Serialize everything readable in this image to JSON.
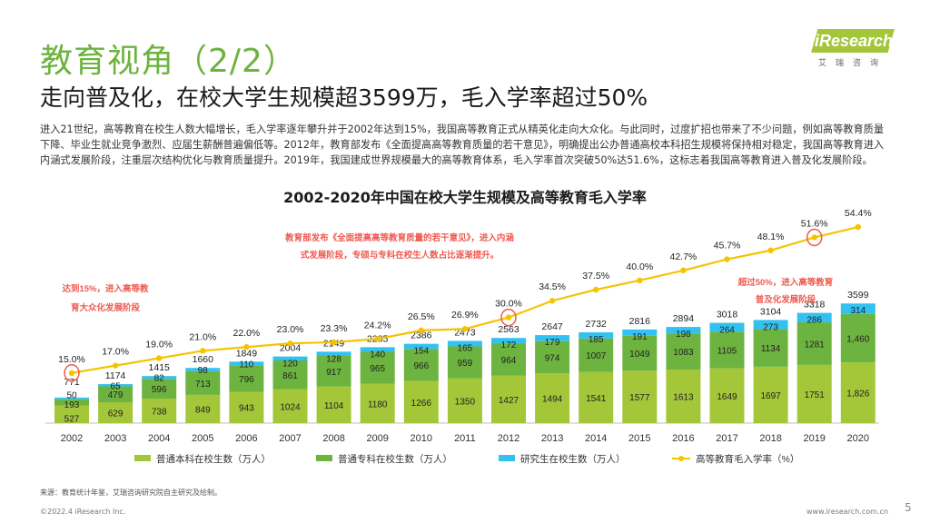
{
  "header": {
    "title": "教育视角（2/2）",
    "subtitle": "走向普及化，在校大学生规模超3599万，毛入学率超过50%"
  },
  "logo": {
    "text": "iResearch",
    "sub": "艾瑞咨询"
  },
  "description": "进入21世纪，高等教育在校生人数大幅增长，毛入学率逐年攀升并于2002年达到15%，我国高等教育正式从精英化走向大众化。与此同时，过度扩招也带来了不少问题，例如高等教育质量下降、毕业生就业竞争激烈、应届生薪酬普遍偏低等。2012年，教育部发布《全面提高高等教育质量的若干意见》，明确提出公办普通高校本科招生规模将保持相对稳定，我国高等教育进入内涵式发展阶段，注重层次结构优化与教育质量提升。2019年，我国建成世界规模最大的高等教育体系，毛入学率首次突破50%达51.6%，这标志着我国高等教育进入普及化发展阶段。",
  "chart_data": {
    "type": "bar",
    "title": "2002-2020年中国在校大学生规模及高等教育毛入学率",
    "categories": [
      "2002",
      "2003",
      "2004",
      "2005",
      "2006",
      "2007",
      "2008",
      "2009",
      "2010",
      "2011",
      "2012",
      "2013",
      "2014",
      "2015",
      "2016",
      "2017",
      "2018",
      "2019",
      "2020"
    ],
    "series": [
      {
        "name": "普通本科在校生数（万人）",
        "color": "#a4c639",
        "values": [
          527,
          629,
          738,
          849,
          943,
          1024,
          1104,
          1180,
          1266,
          1350,
          1427,
          1494,
          1541,
          1577,
          1613,
          1649,
          1697,
          1751,
          1826
        ],
        "labels": [
          "527",
          "629",
          "738",
          "849",
          "943",
          "1024",
          "1104",
          "1180",
          "1266",
          "1350",
          "1427",
          "1494",
          "1541",
          "1577",
          "1613",
          "1649",
          "1697",
          "1751",
          "1,826"
        ]
      },
      {
        "name": "普通专科在校生数（万人）",
        "color": "#6db33f",
        "values": [
          193,
          479,
          596,
          713,
          796,
          861,
          917,
          965,
          966,
          959,
          964,
          974,
          1007,
          1049,
          1083,
          1105,
          1134,
          1281,
          1460
        ],
        "labels": [
          "193",
          "479",
          "596",
          "713",
          "796",
          "861",
          "917",
          "965",
          "966",
          "959",
          "964",
          "974",
          "1007",
          "1049",
          "1083",
          "1105",
          "1134",
          "1281",
          "1,460"
        ]
      },
      {
        "name": "研究生在校生数（万人）",
        "color": "#33c1f0",
        "values": [
          50,
          65,
          82,
          98,
          110,
          120,
          128,
          140,
          154,
          165,
          172,
          179,
          185,
          191,
          198,
          264,
          273,
          286,
          314
        ],
        "labels": [
          "50",
          "65",
          "82",
          "98",
          "110",
          "120",
          "128",
          "140",
          "154",
          "165",
          "172",
          "179",
          "185",
          "191",
          "198",
          "264",
          "273",
          "286",
          "314"
        ]
      }
    ],
    "totals": [
      "771",
      "1174",
      "1415",
      "1660",
      "1849",
      "2004",
      "2149",
      "2285",
      "2386",
      "2473",
      "2563",
      "2647",
      "2732",
      "2816",
      "2894",
      "3018",
      "3104",
      "3318",
      "3599"
    ],
    "line": {
      "name": "高等教育毛入学率（%）",
      "color": "#f5c400",
      "values": [
        15.0,
        17.0,
        19.0,
        21.0,
        22.0,
        23.0,
        23.3,
        24.2,
        26.5,
        26.9,
        30.0,
        34.5,
        37.5,
        40.0,
        42.7,
        45.7,
        48.1,
        51.6,
        54.4
      ]
    },
    "line_labels": [
      "15.0%",
      "17.0%",
      "19.0%",
      "21.0%",
      "22.0%",
      "23.0%",
      "23.3%",
      "24.2%",
      "26.5%",
      "26.9%",
      "30.0%",
      "34.5%",
      "37.5%",
      "40.0%",
      "42.7%",
      "45.7%",
      "48.1%",
      "51.6%",
      "54.4%"
    ],
    "ylim_bar": [
      0,
      3600
    ],
    "ylim_line": [
      0,
      55
    ],
    "annotations": [
      {
        "year": "2002",
        "lines": [
          "达到15%，进入高等教",
          "育大众化发展阶段"
        ]
      },
      {
        "year": "2012",
        "lines": [
          "教育部发布《全面提高高等教育质量的若干意见》，进入内涵",
          "式发展阶段，专硕与专科在校生人数占比逐渐提升。"
        ]
      },
      {
        "year": "2019",
        "lines": [
          "超过50%，进入高等教育",
          "普及化发展阶段"
        ]
      }
    ],
    "annotation_color": "#f05a50"
  },
  "footer": {
    "source": "来源：教育统计年鉴，艾瑞咨询研究院自主研究及绘制。",
    "copyright": "©2022.4 iResearch Inc.",
    "website": "www.iresearch.com.cn",
    "page": "5"
  }
}
